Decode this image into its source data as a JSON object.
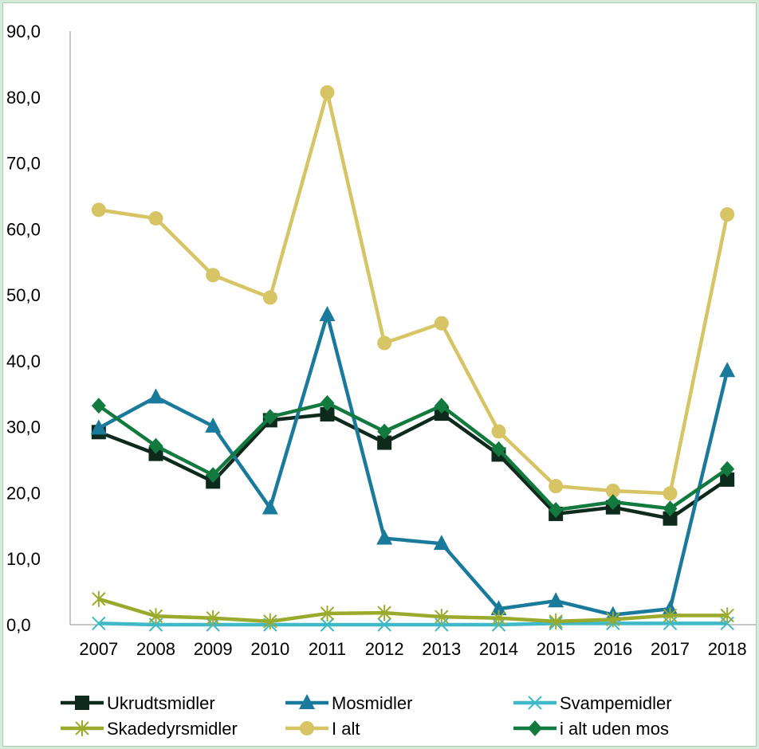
{
  "chart_data": {
    "type": "line",
    "title": "",
    "xlabel": "",
    "ylabel": "",
    "x": [
      "2007",
      "2008",
      "2009",
      "2010",
      "2011",
      "2012",
      "2013",
      "2014",
      "2015",
      "2016",
      "2017",
      "2018"
    ],
    "ylim": [
      0,
      90
    ],
    "yticks": [
      "0,0",
      "10,0",
      "20,0",
      "30,0",
      "40,0",
      "50,0",
      "60,0",
      "70,0",
      "80,0",
      "90,0"
    ],
    "grid": false,
    "legend_position": "bottom",
    "series": [
      {
        "name": "Ukrudtsmidler",
        "color": "#0e2a1c",
        "marker": "square",
        "values": [
          29.2,
          25.9,
          21.7,
          31.0,
          31.9,
          27.6,
          32.0,
          25.8,
          16.8,
          17.8,
          16.1,
          22.0
        ]
      },
      {
        "name": "Mosmidler",
        "color": "#1a7a9c",
        "marker": "triangle",
        "values": [
          29.8,
          34.5,
          30.1,
          17.7,
          47.0,
          13.1,
          12.3,
          2.4,
          3.6,
          1.5,
          2.4,
          38.5
        ]
      },
      {
        "name": "Svampemidler",
        "color": "#3fb8c8",
        "marker": "x",
        "values": [
          0.2,
          0.0,
          0.0,
          0.0,
          0.0,
          0.0,
          0.0,
          0.0,
          0.2,
          0.2,
          0.2,
          0.2
        ]
      },
      {
        "name": "Skadedyrsmidler",
        "color": "#9aaa2c",
        "marker": "asterisk",
        "values": [
          3.9,
          1.3,
          1.0,
          0.5,
          1.7,
          1.8,
          1.2,
          1.0,
          0.5,
          0.8,
          1.4,
          1.4
        ]
      },
      {
        "name": "I alt",
        "color": "#d6c465",
        "marker": "circle",
        "values": [
          62.9,
          61.6,
          53.0,
          49.6,
          80.7,
          42.7,
          45.7,
          29.3,
          21.0,
          20.3,
          19.9,
          62.2
        ]
      },
      {
        "name": "i alt uden mos",
        "color": "#137a3f",
        "marker": "diamond",
        "values": [
          33.2,
          27.1,
          22.7,
          31.5,
          33.6,
          29.3,
          33.2,
          26.6,
          17.4,
          18.6,
          17.6,
          23.6
        ]
      }
    ]
  }
}
